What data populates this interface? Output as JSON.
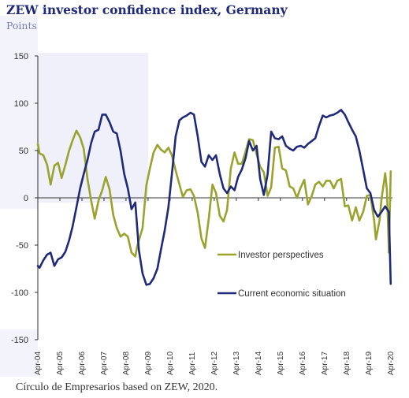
{
  "header": {
    "title": "ZEW investor confidence index, Germany",
    "subtitle": "Points"
  },
  "footer": {
    "source": "Círculo de Empresarios based on ZEW, 2020."
  },
  "colors": {
    "investor_perspectives": "#9aa32e",
    "current_situation": "#1f2a78",
    "axis": "#333333",
    "background_band": "#e4e4f6"
  },
  "chart_data": {
    "type": "line",
    "title": "ZEW investor confidence index, Germany",
    "ylabel": "Points",
    "xlabel": "",
    "ylim": [
      -150,
      150
    ],
    "yticks": [
      -150,
      -100,
      -50,
      0,
      50,
      100,
      150
    ],
    "xlim": [
      2004.25,
      2020.33
    ],
    "xticks": [
      {
        "label": "Apr-04",
        "x": 2004.25
      },
      {
        "label": "Apr-05",
        "x": 2005.25
      },
      {
        "label": "Apr-06",
        "x": 2006.25
      },
      {
        "label": "Apr-07",
        "x": 2007.25
      },
      {
        "label": "Apr-08",
        "x": 2008.25
      },
      {
        "label": "Apr-09",
        "x": 2009.25
      },
      {
        "label": "Apr-10",
        "x": 2010.25
      },
      {
        "label": "Apr-11",
        "x": 2011.25
      },
      {
        "label": "Apr-12",
        "x": 2012.25
      },
      {
        "label": "Apr-13",
        "x": 2013.25
      },
      {
        "label": "Apr-14",
        "x": 2014.25
      },
      {
        "label": "Apr-15",
        "x": 2015.25
      },
      {
        "label": "Apr-16",
        "x": 2016.25
      },
      {
        "label": "Apr-17",
        "x": 2017.25
      },
      {
        "label": "Apr-18",
        "x": 2018.25
      },
      {
        "label": "Apr-19",
        "x": 2019.25
      },
      {
        "label": "Apr-20",
        "x": 2020.25
      }
    ],
    "grid": false,
    "legend": "bottom-right",
    "series": [
      {
        "name": "Investor perspectives",
        "color": "#9aa32e",
        "points": [
          [
            2004.25,
            57
          ],
          [
            2004.33,
            47
          ],
          [
            2004.5,
            45
          ],
          [
            2004.67,
            35
          ],
          [
            2004.83,
            14
          ],
          [
            2005.0,
            34
          ],
          [
            2005.17,
            37
          ],
          [
            2005.33,
            21
          ],
          [
            2005.5,
            35
          ],
          [
            2005.67,
            50
          ],
          [
            2005.83,
            61
          ],
          [
            2006.0,
            71
          ],
          [
            2006.17,
            64
          ],
          [
            2006.33,
            52
          ],
          [
            2006.5,
            20
          ],
          [
            2006.67,
            -3
          ],
          [
            2006.83,
            -22
          ],
          [
            2007.0,
            -3
          ],
          [
            2007.17,
            8
          ],
          [
            2007.33,
            22
          ],
          [
            2007.5,
            9
          ],
          [
            2007.67,
            -18
          ],
          [
            2007.83,
            -32
          ],
          [
            2008.0,
            -41
          ],
          [
            2008.17,
            -38
          ],
          [
            2008.33,
            -41
          ],
          [
            2008.5,
            -58
          ],
          [
            2008.67,
            -62
          ],
          [
            2008.75,
            -52
          ],
          [
            2008.83,
            -45
          ],
          [
            2009.0,
            -32
          ],
          [
            2009.17,
            13
          ],
          [
            2009.33,
            31
          ],
          [
            2009.5,
            48
          ],
          [
            2009.67,
            56
          ],
          [
            2009.83,
            51
          ],
          [
            2010.0,
            48
          ],
          [
            2010.17,
            53
          ],
          [
            2010.33,
            45
          ],
          [
            2010.5,
            29
          ],
          [
            2010.67,
            14
          ],
          [
            2010.83,
            1
          ],
          [
            2011.0,
            8
          ],
          [
            2011.17,
            9
          ],
          [
            2011.33,
            2
          ],
          [
            2011.5,
            -16
          ],
          [
            2011.67,
            -43
          ],
          [
            2011.83,
            -53
          ],
          [
            2012.0,
            -22
          ],
          [
            2012.17,
            14
          ],
          [
            2012.33,
            5
          ],
          [
            2012.5,
            -19
          ],
          [
            2012.67,
            -25
          ],
          [
            2012.83,
            -13
          ],
          [
            2013.0,
            31
          ],
          [
            2013.17,
            48
          ],
          [
            2013.33,
            36
          ],
          [
            2013.5,
            36
          ],
          [
            2013.67,
            49
          ],
          [
            2013.83,
            62
          ],
          [
            2014.0,
            61
          ],
          [
            2014.17,
            46
          ],
          [
            2014.33,
            33
          ],
          [
            2014.5,
            27
          ],
          [
            2014.67,
            2
          ],
          [
            2014.83,
            11
          ],
          [
            2015.0,
            53
          ],
          [
            2015.17,
            54
          ],
          [
            2015.33,
            31
          ],
          [
            2015.5,
            29
          ],
          [
            2015.67,
            12
          ],
          [
            2015.83,
            10
          ],
          [
            2016.0,
            0
          ],
          [
            2016.17,
            11
          ],
          [
            2016.33,
            19
          ],
          [
            2016.5,
            -7
          ],
          [
            2016.67,
            2
          ],
          [
            2016.83,
            14
          ],
          [
            2017.0,
            17
          ],
          [
            2017.17,
            12
          ],
          [
            2017.33,
            18
          ],
          [
            2017.5,
            18
          ],
          [
            2017.67,
            10
          ],
          [
            2017.83,
            18
          ],
          [
            2018.0,
            20
          ],
          [
            2018.17,
            -9
          ],
          [
            2018.33,
            -8
          ],
          [
            2018.5,
            -24
          ],
          [
            2018.67,
            -10
          ],
          [
            2018.83,
            -24
          ],
          [
            2019.0,
            -15
          ],
          [
            2019.17,
            2
          ],
          [
            2019.33,
            3
          ],
          [
            2019.5,
            -24
          ],
          [
            2019.58,
            -44
          ],
          [
            2019.75,
            -23
          ],
          [
            2019.83,
            -2
          ],
          [
            2020.0,
            26
          ],
          [
            2020.08,
            8
          ],
          [
            2020.17,
            -58
          ],
          [
            2020.25,
            28
          ]
        ]
      },
      {
        "name": "Current economic situation",
        "color": "#1f2a78",
        "points": [
          [
            2004.25,
            -72
          ],
          [
            2004.33,
            -74
          ],
          [
            2004.5,
            -66
          ],
          [
            2004.67,
            -60
          ],
          [
            2004.83,
            -58
          ],
          [
            2005.0,
            -72
          ],
          [
            2005.17,
            -65
          ],
          [
            2005.33,
            -63
          ],
          [
            2005.5,
            -57
          ],
          [
            2005.67,
            -45
          ],
          [
            2005.83,
            -30
          ],
          [
            2006.0,
            -10
          ],
          [
            2006.17,
            10
          ],
          [
            2006.33,
            25
          ],
          [
            2006.5,
            40
          ],
          [
            2006.67,
            58
          ],
          [
            2006.83,
            70
          ],
          [
            2007.0,
            72
          ],
          [
            2007.17,
            88
          ],
          [
            2007.33,
            88
          ],
          [
            2007.5,
            80
          ],
          [
            2007.67,
            70
          ],
          [
            2007.83,
            68
          ],
          [
            2008.0,
            50
          ],
          [
            2008.17,
            25
          ],
          [
            2008.33,
            10
          ],
          [
            2008.5,
            -12
          ],
          [
            2008.67,
            -5
          ],
          [
            2008.83,
            -55
          ],
          [
            2009.0,
            -80
          ],
          [
            2009.17,
            -92
          ],
          [
            2009.33,
            -91
          ],
          [
            2009.5,
            -85
          ],
          [
            2009.67,
            -75
          ],
          [
            2009.83,
            -55
          ],
          [
            2010.0,
            -35
          ],
          [
            2010.17,
            -10
          ],
          [
            2010.33,
            25
          ],
          [
            2010.5,
            65
          ],
          [
            2010.67,
            82
          ],
          [
            2010.83,
            85
          ],
          [
            2011.0,
            87
          ],
          [
            2011.17,
            90
          ],
          [
            2011.33,
            88
          ],
          [
            2011.5,
            65
          ],
          [
            2011.67,
            38
          ],
          [
            2011.83,
            33
          ],
          [
            2012.0,
            45
          ],
          [
            2012.17,
            40
          ],
          [
            2012.33,
            45
          ],
          [
            2012.5,
            25
          ],
          [
            2012.67,
            10
          ],
          [
            2012.83,
            5
          ],
          [
            2013.0,
            12
          ],
          [
            2013.17,
            8
          ],
          [
            2013.33,
            22
          ],
          [
            2013.5,
            30
          ],
          [
            2013.67,
            42
          ],
          [
            2013.83,
            60
          ],
          [
            2014.0,
            50
          ],
          [
            2014.17,
            55
          ],
          [
            2014.33,
            20
          ],
          [
            2014.5,
            3
          ],
          [
            2014.67,
            25
          ],
          [
            2014.83,
            70
          ],
          [
            2015.0,
            63
          ],
          [
            2015.17,
            62
          ],
          [
            2015.33,
            65
          ],
          [
            2015.5,
            55
          ],
          [
            2015.67,
            52
          ],
          [
            2015.83,
            50
          ],
          [
            2016.0,
            54
          ],
          [
            2016.17,
            55
          ],
          [
            2016.33,
            53
          ],
          [
            2016.5,
            57
          ],
          [
            2016.67,
            60
          ],
          [
            2016.83,
            63
          ],
          [
            2017.0,
            76
          ],
          [
            2017.17,
            87
          ],
          [
            2017.33,
            85
          ],
          [
            2017.5,
            87
          ],
          [
            2017.67,
            88
          ],
          [
            2017.83,
            90
          ],
          [
            2018.0,
            93
          ],
          [
            2018.17,
            88
          ],
          [
            2018.33,
            80
          ],
          [
            2018.5,
            72
          ],
          [
            2018.67,
            65
          ],
          [
            2018.83,
            50
          ],
          [
            2019.0,
            30
          ],
          [
            2019.17,
            10
          ],
          [
            2019.33,
            5
          ],
          [
            2019.5,
            -13
          ],
          [
            2019.67,
            -20
          ],
          [
            2019.83,
            -15
          ],
          [
            2020.0,
            -9
          ],
          [
            2020.17,
            -15
          ],
          [
            2020.25,
            -91
          ]
        ]
      }
    ]
  }
}
